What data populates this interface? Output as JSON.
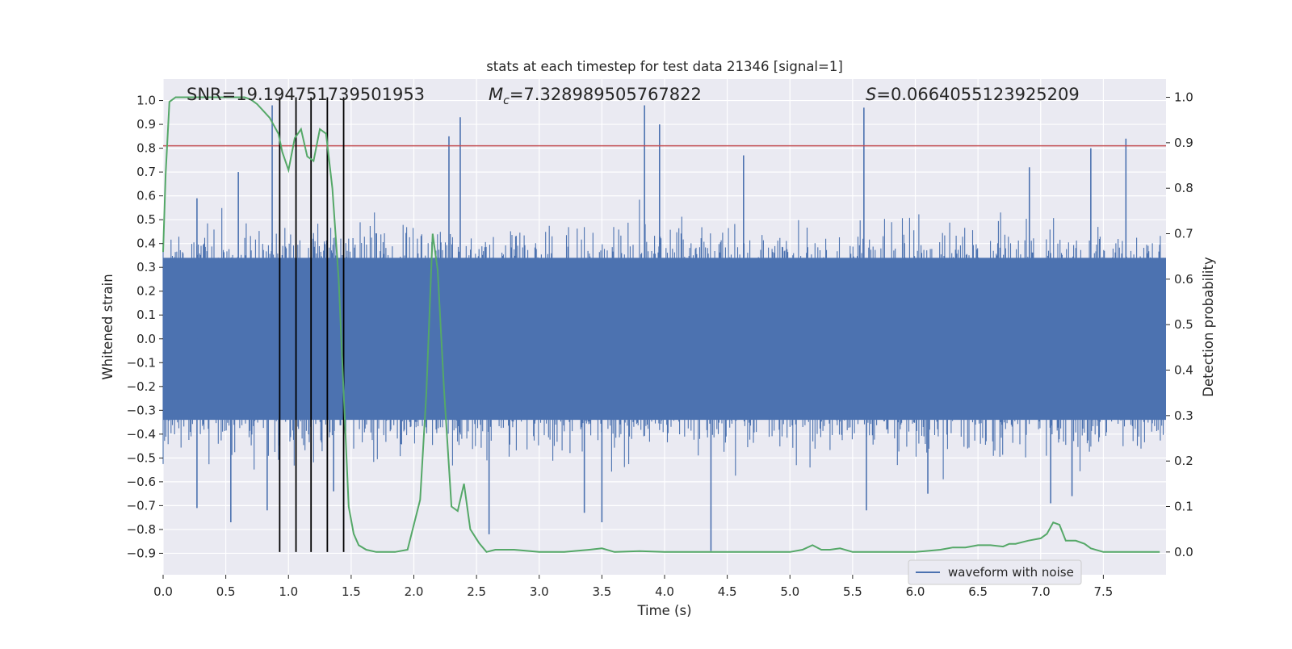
{
  "chart_data": {
    "type": "line",
    "title": "stats at each timestep for test data 21346 [signal=1]",
    "xlabel": "Time (s)",
    "ylabel": "Whitened strain",
    "ylabel_right": "Detection probability",
    "xlim": [
      0,
      8
    ],
    "ylim_left": [
      -0.99,
      1.09
    ],
    "ylim_right": [
      -0.05,
      1.04
    ],
    "x_ticks": [
      0.0,
      0.5,
      1.0,
      1.5,
      2.0,
      2.5,
      3.0,
      3.5,
      4.0,
      4.5,
      5.0,
      5.5,
      6.0,
      6.5,
      7.0,
      7.5
    ],
    "x_tick_labels": [
      "0.0",
      "0.5",
      "1.0",
      "1.5",
      "2.0",
      "2.5",
      "3.0",
      "3.5",
      "4.0",
      "4.5",
      "5.0",
      "5.5",
      "6.0",
      "6.5",
      "7.0",
      "7.5"
    ],
    "y_left_ticks": [
      1.0,
      0.9,
      0.8,
      0.7,
      0.6,
      0.5,
      0.4,
      0.3,
      0.2,
      0.1,
      0.0,
      -0.1,
      -0.2,
      -0.3,
      -0.4,
      -0.5,
      -0.6,
      -0.7,
      -0.8,
      -0.9
    ],
    "y_left_tick_labels": [
      "1.0",
      "0.9",
      "0.8",
      "0.7",
      "0.6",
      "0.5",
      "0.4",
      "0.3",
      "0.2",
      "0.1",
      "0.0",
      "−0.1",
      "−0.2",
      "−0.3",
      "−0.4",
      "−0.5",
      "−0.6",
      "−0.7",
      "−0.8",
      "−0.9"
    ],
    "y_right_ticks": [
      1.0,
      0.9,
      0.8,
      0.7,
      0.6,
      0.5,
      0.4,
      0.3,
      0.2,
      0.1,
      0.0
    ],
    "y_right_tick_labels": [
      "1.0",
      "0.9",
      "0.8",
      "0.7",
      "0.6",
      "0.5",
      "0.4",
      "0.3",
      "0.2",
      "0.1",
      "0.0"
    ],
    "grid": true,
    "legend_position": "lower-right",
    "annotations": {
      "snr": "SNR=19.194751739501953",
      "mc_symbol": "M",
      "mc_subscript": "c",
      "mc_value": "=7.328989505767822",
      "s_symbol": "S",
      "s_value": "=0.0664055123925209"
    },
    "series": [
      {
        "name": "waveform with noise",
        "axis": "left",
        "color": "#4c72b0",
        "style": "dense noise",
        "sampling_note": "dense noise trace sampled over 0-8 s",
        "band_typical": [
          -0.35,
          0.35
        ],
        "peaks": [
          {
            "x": 0.87,
            "y": 0.98
          },
          {
            "x": 2.28,
            "y": 0.85
          },
          {
            "x": 2.37,
            "y": 0.93
          },
          {
            "x": 3.84,
            "y": 0.98
          },
          {
            "x": 3.96,
            "y": 0.9
          },
          {
            "x": 5.59,
            "y": 0.97
          },
          {
            "x": 7.4,
            "y": 0.8
          },
          {
            "x": 7.68,
            "y": 0.84
          },
          {
            "x": 0.27,
            "y": 0.59
          },
          {
            "x": 0.6,
            "y": 0.7
          },
          {
            "x": 4.63,
            "y": 0.77
          },
          {
            "x": 6.91,
            "y": 0.72
          }
        ],
        "troughs": [
          {
            "x": 4.37,
            "y": -0.89
          },
          {
            "x": 2.6,
            "y": -0.82
          },
          {
            "x": 3.5,
            "y": -0.77
          },
          {
            "x": 0.54,
            "y": -0.77
          },
          {
            "x": 0.27,
            "y": -0.71
          },
          {
            "x": 0.83,
            "y": -0.72
          },
          {
            "x": 5.61,
            "y": -0.72
          },
          {
            "x": 7.08,
            "y": -0.69
          },
          {
            "x": 7.25,
            "y": -0.66
          },
          {
            "x": 3.36,
            "y": -0.73
          },
          {
            "x": 6.1,
            "y": -0.65
          },
          {
            "x": 1.36,
            "y": -0.64
          }
        ]
      },
      {
        "name": "",
        "axis": "right",
        "color": "#55a868",
        "x": [
          0.0,
          0.02,
          0.05,
          0.1,
          0.2,
          0.3,
          0.4,
          0.5,
          0.6,
          0.65,
          0.7,
          0.75,
          0.8,
          0.85,
          0.88,
          0.92,
          0.95,
          1.0,
          1.05,
          1.1,
          1.15,
          1.2,
          1.25,
          1.3,
          1.35,
          1.4,
          1.44,
          1.48,
          1.52,
          1.56,
          1.62,
          1.7,
          1.75,
          1.85,
          1.95,
          2.05,
          2.1,
          2.15,
          2.19,
          2.24,
          2.3,
          2.35,
          2.4,
          2.45,
          2.52,
          2.58,
          2.65,
          2.7,
          2.8,
          3.0,
          3.2,
          3.4,
          3.5,
          3.6,
          3.8,
          4.0,
          4.2,
          4.5,
          4.8,
          5.0,
          5.1,
          5.18,
          5.25,
          5.32,
          5.4,
          5.5,
          5.6,
          5.8,
          6.0,
          6.2,
          6.3,
          6.4,
          6.5,
          6.6,
          6.7,
          6.75,
          6.8,
          6.9,
          7.0,
          7.05,
          7.1,
          7.15,
          7.2,
          7.28,
          7.35,
          7.4,
          7.5,
          7.6,
          7.8,
          7.95
        ],
        "y": [
          0.66,
          0.83,
          0.99,
          1.0,
          1.0,
          1.0,
          1.0,
          1.0,
          1.0,
          1.0,
          0.995,
          0.985,
          0.97,
          0.955,
          0.94,
          0.92,
          0.88,
          0.84,
          0.91,
          0.93,
          0.87,
          0.86,
          0.93,
          0.92,
          0.8,
          0.6,
          0.35,
          0.1,
          0.04,
          0.015,
          0.005,
          0.0,
          0.0,
          0.0,
          0.005,
          0.115,
          0.35,
          0.7,
          0.62,
          0.36,
          0.1,
          0.09,
          0.15,
          0.05,
          0.02,
          0.0,
          0.005,
          0.005,
          0.005,
          0.0,
          0.0,
          0.005,
          0.008,
          0.0,
          0.002,
          0.0,
          0.0,
          0.0,
          0.0,
          0.0,
          0.005,
          0.015,
          0.005,
          0.005,
          0.008,
          0.0,
          0.0,
          0.0,
          0.0,
          0.005,
          0.01,
          0.01,
          0.015,
          0.015,
          0.012,
          0.018,
          0.018,
          0.025,
          0.03,
          0.04,
          0.065,
          0.06,
          0.025,
          0.025,
          0.018,
          0.008,
          0.0,
          0.0,
          0.0,
          0.0
        ]
      }
    ],
    "horizontal_lines": [
      {
        "axis": "left",
        "y": 0.81,
        "color": "#c44e52"
      }
    ],
    "vertical_lines": [
      {
        "x": 0.93,
        "color": "#000000"
      },
      {
        "x": 1.06,
        "color": "#000000"
      },
      {
        "x": 1.18,
        "color": "#000000"
      },
      {
        "x": 1.31,
        "color": "#000000"
      },
      {
        "x": 1.44,
        "color": "#000000"
      }
    ]
  }
}
